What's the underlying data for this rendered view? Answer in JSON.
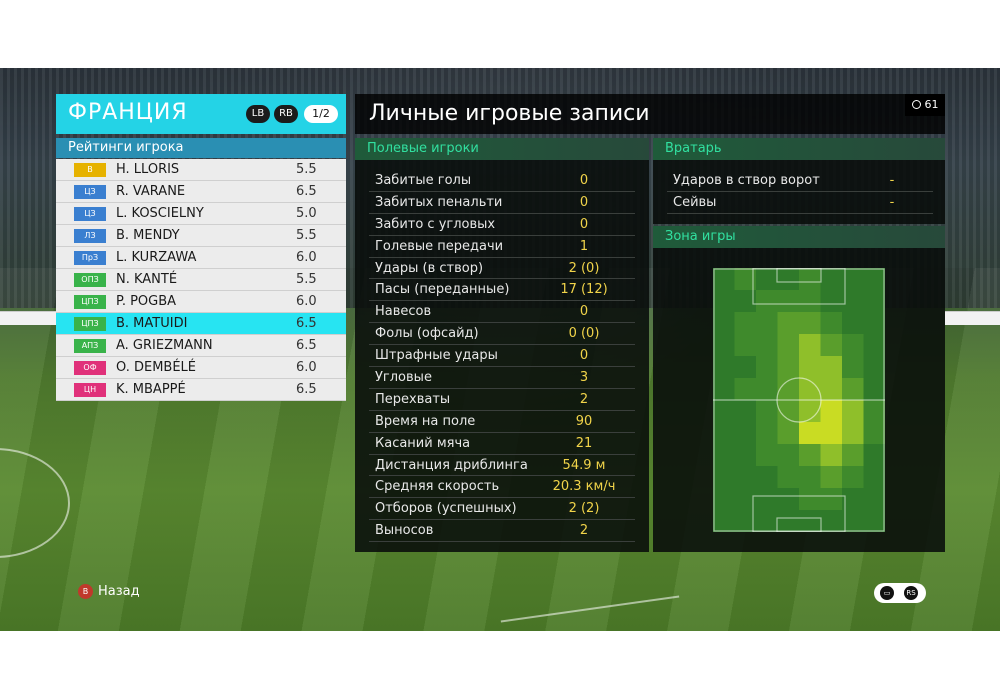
{
  "header": {
    "team_name": "ФРАНЦИЯ",
    "lb_label": "LB",
    "rb_label": "RB",
    "page_indicator": "1/2"
  },
  "ratings": {
    "title": "Рейтинги игрока",
    "players": [
      {
        "pos": "В",
        "pos_color": "#e6b200",
        "name": "H. LLORIS",
        "rating": "5.5"
      },
      {
        "pos": "ЦЗ",
        "pos_color": "#3a7fd0",
        "name": "R. VARANE",
        "rating": "6.5"
      },
      {
        "pos": "ЦЗ",
        "pos_color": "#3a7fd0",
        "name": "L. KOSCIELNY",
        "rating": "5.0"
      },
      {
        "pos": "ЛЗ",
        "pos_color": "#3a7fd0",
        "name": "B. MENDY",
        "rating": "5.5"
      },
      {
        "pos": "ПрЗ",
        "pos_color": "#3a7fd0",
        "name": "L. KURZAWA",
        "rating": "6.0"
      },
      {
        "pos": "ОПЗ",
        "pos_color": "#39b34a",
        "name": "N. KANTÉ",
        "rating": "5.5"
      },
      {
        "pos": "ЦПЗ",
        "pos_color": "#39b34a",
        "name": "P. POGBA",
        "rating": "6.0"
      },
      {
        "pos": "ЦПЗ",
        "pos_color": "#39b34a",
        "name": "B. MATUIDI",
        "rating": "6.5"
      },
      {
        "pos": "АПЗ",
        "pos_color": "#39b34a",
        "name": "A. GRIEZMANN",
        "rating": "6.5"
      },
      {
        "pos": "ОФ",
        "pos_color": "#e0317a",
        "name": "O. DEMBÉLÉ",
        "rating": "6.0"
      },
      {
        "pos": "ЦН",
        "pos_color": "#e0317a",
        "name": "K. MBAPPÉ",
        "rating": "6.5"
      }
    ],
    "selected_index": 7
  },
  "main": {
    "title": "Личные игровые записи",
    "timer": "61",
    "field_players_title": "Полевые игроки",
    "stats": [
      {
        "label": "Забитые голы",
        "value": "0"
      },
      {
        "label": "Забитых пенальти",
        "value": "0"
      },
      {
        "label": "Забито с угловых",
        "value": "0"
      },
      {
        "label": "Голевые передачи",
        "value": "1"
      },
      {
        "label": "Удары (в створ)",
        "value": "2 (0)"
      },
      {
        "label": "Пасы (переданные)",
        "value": "17 (12)"
      },
      {
        "label": "Навесов",
        "value": "0"
      },
      {
        "label": "Фолы (офсайд)",
        "value": "0 (0)"
      },
      {
        "label": "Штрафные удары",
        "value": "0"
      },
      {
        "label": "Угловые",
        "value": "3"
      },
      {
        "label": "Перехваты",
        "value": "2"
      },
      {
        "label": "Время на поле",
        "value": "90"
      },
      {
        "label": "Касаний мяча",
        "value": "21"
      },
      {
        "label": "Дистанция дриблинга",
        "value": "54.9 м"
      },
      {
        "label": "Средняя скорость",
        "value": "20.3 км/ч"
      },
      {
        "label": "Отборов (успешных)",
        "value": "2 (2)"
      },
      {
        "label": "Выносов",
        "value": "2"
      }
    ],
    "goalkeeper_title": "Вратарь",
    "gk_stats": [
      {
        "label": "Ударов в створ ворот",
        "value": "-"
      },
      {
        "label": "Сейвы",
        "value": "-"
      }
    ],
    "zone_title": "Зона игры"
  },
  "footer": {
    "back_button": "B",
    "back_label": "Назад",
    "chat_icon": "chat-icon",
    "rs_label": "RS"
  },
  "colors": {
    "team_accent": "#24d3e6",
    "section_green": "#31e0a0",
    "value_yellow": "#f1d44a"
  }
}
